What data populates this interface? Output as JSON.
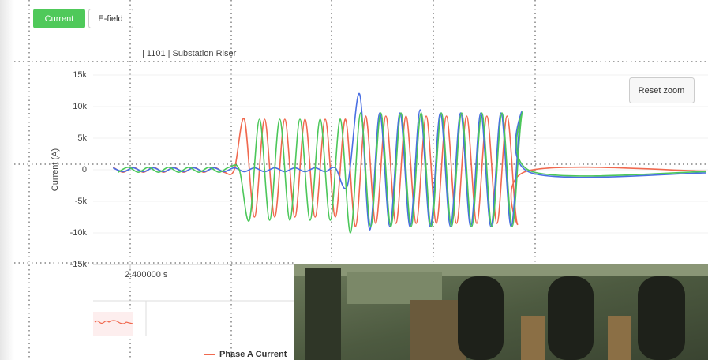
{
  "toolbar": {
    "buttons": [
      "Current",
      "E-field"
    ],
    "reset_zoom": "Reset zoom"
  },
  "chart_data": {
    "type": "line",
    "subtitle": "| 1101 | Substation Riser",
    "y_label": "Current (A)",
    "xlim": [
      2.3633,
      2.9719
    ],
    "xticks": [
      {
        "value": 2.4,
        "label": "2.400000 s"
      }
    ],
    "ylim": [
      -15000,
      15000
    ],
    "yticks": [
      {
        "value": 15000,
        "label": "15k"
      },
      {
        "value": 10000,
        "label": "10k"
      },
      {
        "value": 5000,
        "label": "5k"
      },
      0,
      {
        "value": -5000,
        "label": "-5k"
      },
      {
        "value": -10000,
        "label": "-10k"
      },
      {
        "value": -15000,
        "label": "-15k"
      }
    ],
    "series": [
      {
        "name": "Phase A Current",
        "color": "#f0694f",
        "x": [
          2.383,
          2.393,
          2.403,
          2.413,
          2.423,
          2.433,
          2.443,
          2.453,
          2.463,
          2.473,
          2.483,
          2.493,
          2.503,
          2.513,
          2.523,
          2.533,
          2.543,
          2.553,
          2.563,
          2.573,
          2.583,
          2.593,
          2.603,
          2.613,
          2.623,
          2.633,
          2.643,
          2.653,
          2.663,
          2.673,
          2.683,
          2.693,
          2.703,
          2.713,
          2.723,
          2.733,
          2.743,
          2.753,
          2.763,
          2.773,
          2.783,
          2.793,
          2.97
        ],
        "values": [
          400,
          -400,
          400,
          -400,
          400,
          -400,
          400,
          -400,
          400,
          -400,
          400,
          -400,
          0,
          8000,
          -7500,
          8000,
          -7500,
          8000,
          -7500,
          8000,
          -7500,
          8000,
          -7500,
          8000,
          -9000,
          8500,
          -8500,
          8500,
          -8500,
          8500,
          -8500,
          8500,
          -8500,
          8500,
          -8500,
          8500,
          -8500,
          8500,
          -8500,
          8500,
          -8500,
          -200,
          -200
        ]
      },
      {
        "color": "#4a6fe3",
        "x": [
          2.383,
          2.393,
          2.403,
          2.413,
          2.423,
          2.433,
          2.443,
          2.453,
          2.463,
          2.473,
          2.483,
          2.493,
          2.503,
          2.513,
          2.523,
          2.533,
          2.543,
          2.553,
          2.563,
          2.573,
          2.583,
          2.593,
          2.603,
          2.615,
          2.627,
          2.637,
          2.647,
          2.657,
          2.667,
          2.677,
          2.687,
          2.697,
          2.707,
          2.717,
          2.727,
          2.737,
          2.747,
          2.757,
          2.767,
          2.777,
          2.787,
          2.797,
          2.97
        ],
        "values": [
          300,
          -300,
          300,
          -300,
          300,
          -300,
          300,
          -300,
          300,
          -300,
          300,
          -300,
          300,
          -300,
          300,
          -300,
          300,
          -300,
          300,
          -300,
          300,
          -300,
          300,
          -2500,
          12000,
          -9500,
          9000,
          -9000,
          9000,
          -9000,
          9500,
          -9000,
          9000,
          -9000,
          9000,
          -9000,
          9000,
          -9000,
          9000,
          -9000,
          9000,
          -500,
          -500
        ]
      },
      {
        "color": "#4cc75a",
        "x": [
          2.388,
          2.398,
          2.408,
          2.418,
          2.428,
          2.438,
          2.448,
          2.458,
          2.468,
          2.478,
          2.488,
          2.498,
          2.508,
          2.518,
          2.528,
          2.538,
          2.548,
          2.558,
          2.568,
          2.578,
          2.588,
          2.598,
          2.608,
          2.618,
          2.628,
          2.638,
          2.648,
          2.658,
          2.668,
          2.678,
          2.688,
          2.698,
          2.708,
          2.718,
          2.728,
          2.738,
          2.748,
          2.758,
          2.768,
          2.778,
          2.788,
          2.798,
          2.97
        ],
        "values": [
          -400,
          400,
          -400,
          400,
          -400,
          400,
          -400,
          400,
          -400,
          400,
          -400,
          400,
          0,
          -8000,
          8000,
          -8000,
          8000,
          -8000,
          8000,
          -8000,
          8000,
          -8000,
          8000,
          -10000,
          9000,
          -9000,
          9000,
          -9000,
          9000,
          -9000,
          9000,
          -9000,
          9000,
          -9000,
          9000,
          -9000,
          9000,
          -9000,
          9000,
          -9000,
          9000,
          -300,
          -300
        ]
      }
    ]
  }
}
